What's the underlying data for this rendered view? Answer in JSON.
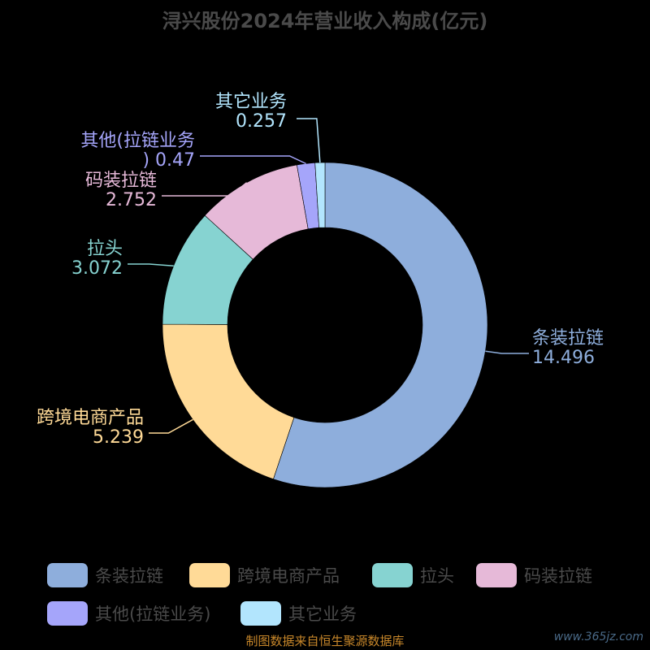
{
  "chart_data": {
    "type": "pie",
    "title": "浔兴股份2024年营业收入构成(亿元)",
    "slices": [
      {
        "name": "条装拉链",
        "value": 14.496,
        "value_label": "14.496",
        "color": "#8eaedc"
      },
      {
        "name": "跨境电商产品",
        "value": 5.239,
        "value_label": "5.239",
        "color": "#ffda97"
      },
      {
        "name": "拉头",
        "value": 3.072,
        "value_label": "3.072",
        "color": "#86d3d1"
      },
      {
        "name": "码装拉链",
        "value": 2.752,
        "value_label": "2.752",
        "color": "#e6b9d8"
      },
      {
        "name": "其他(拉链业务)",
        "value": 0.47,
        "value_label": "0.47",
        "color": "#a5a5fa"
      },
      {
        "name": "其它业务",
        "value": 0.257,
        "value_label": "0.257",
        "color": "#b2e5fd"
      }
    ],
    "legend_position": "bottom"
  },
  "footer": {
    "source": "制图数据来自恒生聚源数据库",
    "watermark": "www.365jz.com"
  }
}
